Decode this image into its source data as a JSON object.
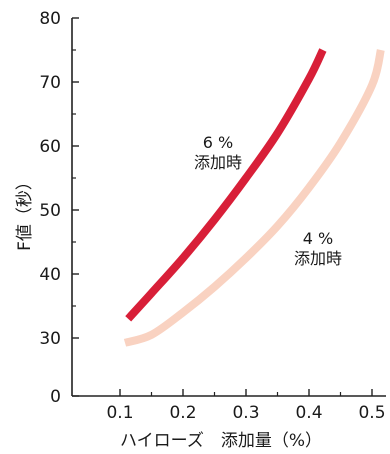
{
  "chart_data": {
    "type": "line",
    "title": "",
    "xlabel": "ハイローズ　添加量（%）",
    "ylabel": "F値（秒）",
    "xlim": [
      0.1,
      0.5
    ],
    "ylim": [
      0,
      80
    ],
    "x_ticks": [
      "0.1",
      "0.2",
      "0.3",
      "0.4",
      "0.5"
    ],
    "y_ticks": [
      "0",
      "30",
      "40",
      "50",
      "60",
      "70",
      "80"
    ],
    "grid": false,
    "series": [
      {
        "name": "6％ 添加時",
        "label_lines": [
          "6 %",
          "添加時"
        ],
        "color": "#d81f38",
        "x": [
          0.113,
          0.15,
          0.2,
          0.25,
          0.3,
          0.35,
          0.4,
          0.422
        ],
        "y": [
          33,
          37,
          42.5,
          48.5,
          55,
          62,
          70.5,
          75
        ]
      },
      {
        "name": "4％ 添加時",
        "label_lines": [
          "4 %",
          "添加時"
        ],
        "color": "#f9d2c1",
        "x": [
          0.108,
          0.15,
          0.2,
          0.25,
          0.3,
          0.35,
          0.4,
          0.45,
          0.5,
          0.514
        ],
        "y": [
          27.5,
          30.5,
          34,
          38,
          42.5,
          47.5,
          53.5,
          60.5,
          69.5,
          75
        ]
      }
    ]
  }
}
